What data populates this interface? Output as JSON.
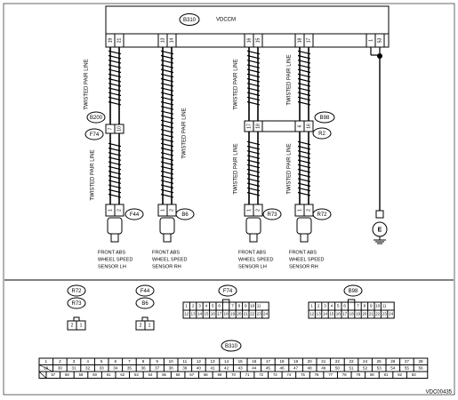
{
  "ecu": {
    "connector": "B310",
    "name": "VDCCM"
  },
  "twisted_pair_label": "TWISTED PAIR LINE",
  "ecu_pins": {
    "fl": [
      "19",
      "21"
    ],
    "fr": [
      "13",
      "14"
    ],
    "rl": [
      "16",
      "15"
    ],
    "rr": [
      "18",
      "17"
    ],
    "ground": [
      "1",
      "53"
    ]
  },
  "mid_connectors": {
    "left_top": "B200",
    "left_bottom": "F74",
    "right_top": "B98",
    "right_bottom": "R2",
    "left_pins": [
      "7",
      "10"
    ],
    "rl_pins": [
      "17",
      "18"
    ],
    "rr_pins": [
      "6",
      "16"
    ]
  },
  "sensor_connectors": [
    "F44",
    "B6",
    "R73",
    "R72"
  ],
  "sensor_pins": [
    "1",
    "2"
  ],
  "ground_symbol": "E",
  "sensors": [
    {
      "line1": "FRONT ABS",
      "line2": "WHEEL SPEED",
      "line3": "SENSOR LH"
    },
    {
      "line1": "FRONT ABS",
      "line2": "WHEEL SPEED",
      "line3": "SENSOR RH"
    },
    {
      "line1": "FRONT ABS",
      "line2": "WHEEL SPEED",
      "line3": "SENSOR LH"
    },
    {
      "line1": "FRONT ABS",
      "line2": "WHEEL SPEED",
      "line3": "SENSOR RH"
    }
  ],
  "legend": {
    "r72": "R72",
    "r73": "R73",
    "f44": "F44",
    "b6": "B6",
    "f74": "F74",
    "b98": "B98",
    "b310": "B310",
    "small_pins": [
      "2",
      "1"
    ],
    "f74_row1": [
      "1",
      "2",
      "3",
      "4",
      "5",
      "6",
      "",
      "7",
      "8",
      "9",
      "10",
      "11"
    ],
    "f74_row2": [
      "12",
      "13",
      "14",
      "15",
      "16",
      "17",
      "18",
      "19",
      "20",
      "21",
      "22",
      "23",
      "24"
    ],
    "b310_row1": [
      "1",
      "2",
      "3",
      "4",
      "5",
      "6",
      "7",
      "8",
      "9",
      "10",
      "11",
      "12",
      "13",
      "14",
      "15",
      "16",
      "17",
      "18",
      "19",
      "20",
      "21",
      "22",
      "23",
      "24",
      "25",
      "26",
      "27",
      "28"
    ],
    "b310_row2": [
      "29",
      "30",
      "31",
      "32",
      "33",
      "34",
      "35",
      "36",
      "37",
      "38",
      "39",
      "40",
      "41",
      "42",
      "43",
      "44",
      "45",
      "46",
      "47",
      "48",
      "49",
      "50",
      "51",
      "52",
      "53",
      "54",
      "55",
      "56"
    ],
    "b310_row3": [
      "57",
      "58",
      "59",
      "60",
      "61",
      "62",
      "63",
      "64",
      "65",
      "66",
      "67",
      "68",
      "69",
      "70",
      "71",
      "72",
      "73",
      "74",
      "75",
      "76",
      "77",
      "78",
      "79",
      "80",
      "81",
      "82",
      "83"
    ]
  },
  "figure_code": "VDC00435"
}
